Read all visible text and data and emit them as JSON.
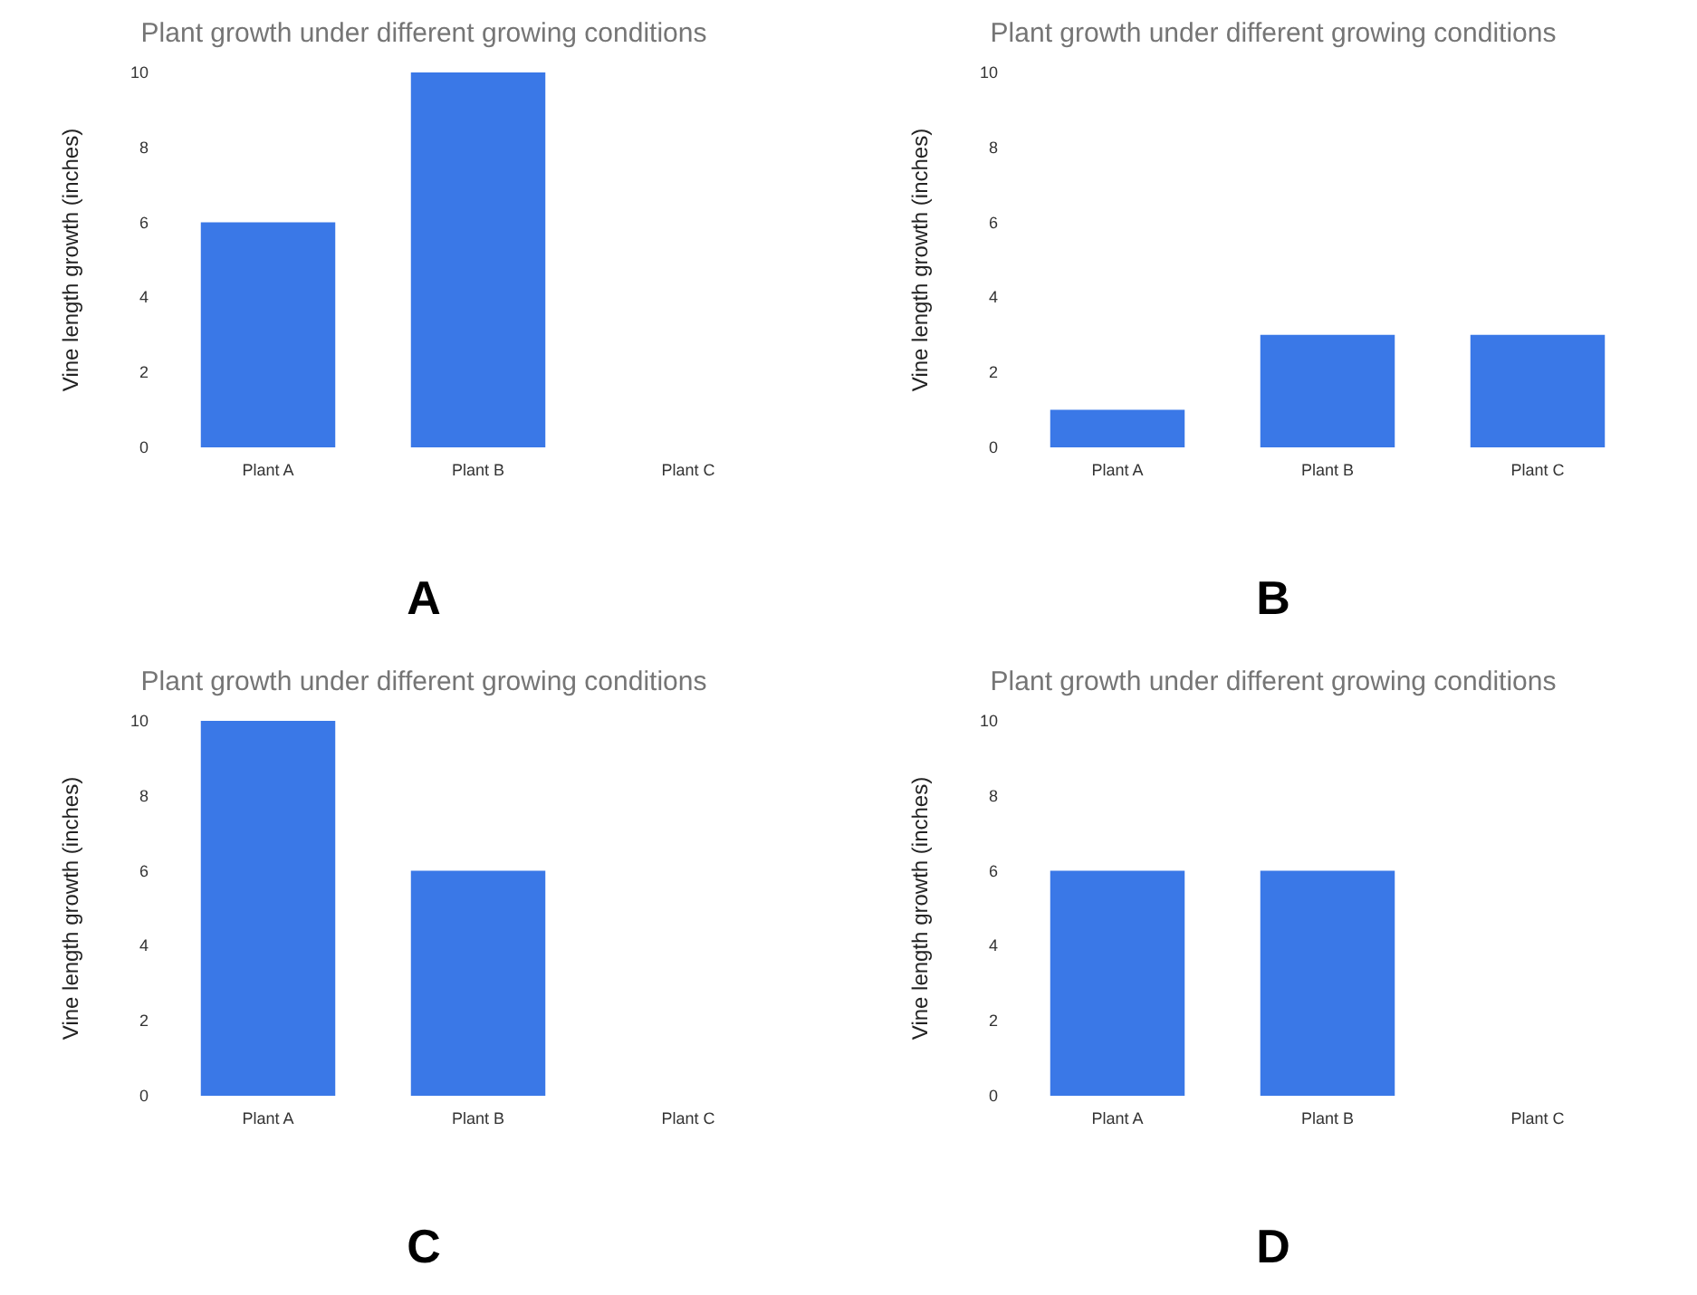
{
  "chart_data": [
    {
      "type": "bar",
      "title": "Plant growth under different growing conditions",
      "ylabel": "Vine length growth (inches)",
      "categories": [
        "Plant A",
        "Plant B",
        "Plant C"
      ],
      "values": [
        6,
        10,
        0
      ],
      "color": "#3a78e7",
      "ylim": [
        0,
        10
      ],
      "yticks": [
        0,
        2,
        4,
        6,
        8,
        10
      ],
      "grid": false,
      "annotations": [
        "A"
      ]
    },
    {
      "type": "bar",
      "title": "Plant growth under different growing conditions",
      "ylabel": "Vine length growth (inches)",
      "categories": [
        "Plant A",
        "Plant B",
        "Plant C"
      ],
      "values": [
        1,
        3,
        3
      ],
      "color": "#3a78e7",
      "ylim": [
        0,
        10
      ],
      "yticks": [
        0,
        2,
        4,
        6,
        8,
        10
      ],
      "grid": false,
      "annotations": [
        "B"
      ]
    },
    {
      "type": "bar",
      "title": "Plant growth under different growing conditions",
      "ylabel": "Vine length growth (inches)",
      "categories": [
        "Plant A",
        "Plant B",
        "Plant C"
      ],
      "values": [
        10,
        6,
        0
      ],
      "color": "#3a78e7",
      "ylim": [
        0,
        10
      ],
      "yticks": [
        0,
        2,
        4,
        6,
        8,
        10
      ],
      "grid": false,
      "annotations": [
        "C"
      ]
    },
    {
      "type": "bar",
      "title": "Plant growth under different growing conditions",
      "ylabel": "Vine length growth (inches)",
      "categories": [
        "Plant A",
        "Plant B",
        "Plant C"
      ],
      "values": [
        6,
        6,
        0
      ],
      "color": "#3a78e7",
      "ylim": [
        0,
        10
      ],
      "yticks": [
        0,
        2,
        4,
        6,
        8,
        10
      ],
      "grid": false,
      "annotations": [
        "D"
      ]
    }
  ]
}
